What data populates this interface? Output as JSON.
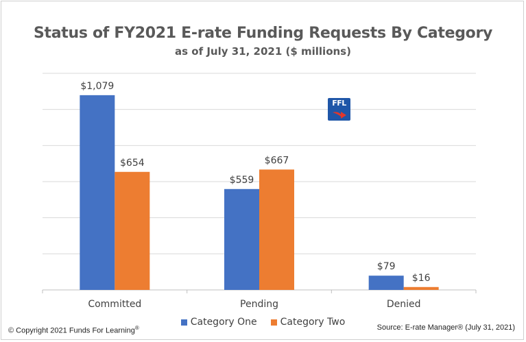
{
  "chart_data": {
    "type": "bar",
    "title": "Status of FY2021 E-rate Funding Requests By Category",
    "subtitle": "as of July 31, 2021 ($ millions)",
    "categories": [
      "Committed",
      "Pending",
      "Denied"
    ],
    "series": [
      {
        "name": "Category One",
        "values": [
          1079,
          559,
          79
        ],
        "labels": [
          "$1,079",
          "$559",
          "$79"
        ],
        "color": "#4472c4"
      },
      {
        "name": "Category Two",
        "values": [
          654,
          667,
          16
        ],
        "labels": [
          "$654",
          "$667",
          "$16"
        ],
        "color": "#ed7d31"
      }
    ],
    "ylim": [
      0,
      1200
    ],
    "grid": true,
    "legend": "bottom"
  },
  "footer": {
    "copyright": "© Copyright 2021 Funds For Learning",
    "copyright_mark": "®",
    "source": "Source: E-rate Manager® (July 31, 2021)"
  },
  "logo": {
    "text": "FFL",
    "icon": "ffl-logo-icon"
  }
}
